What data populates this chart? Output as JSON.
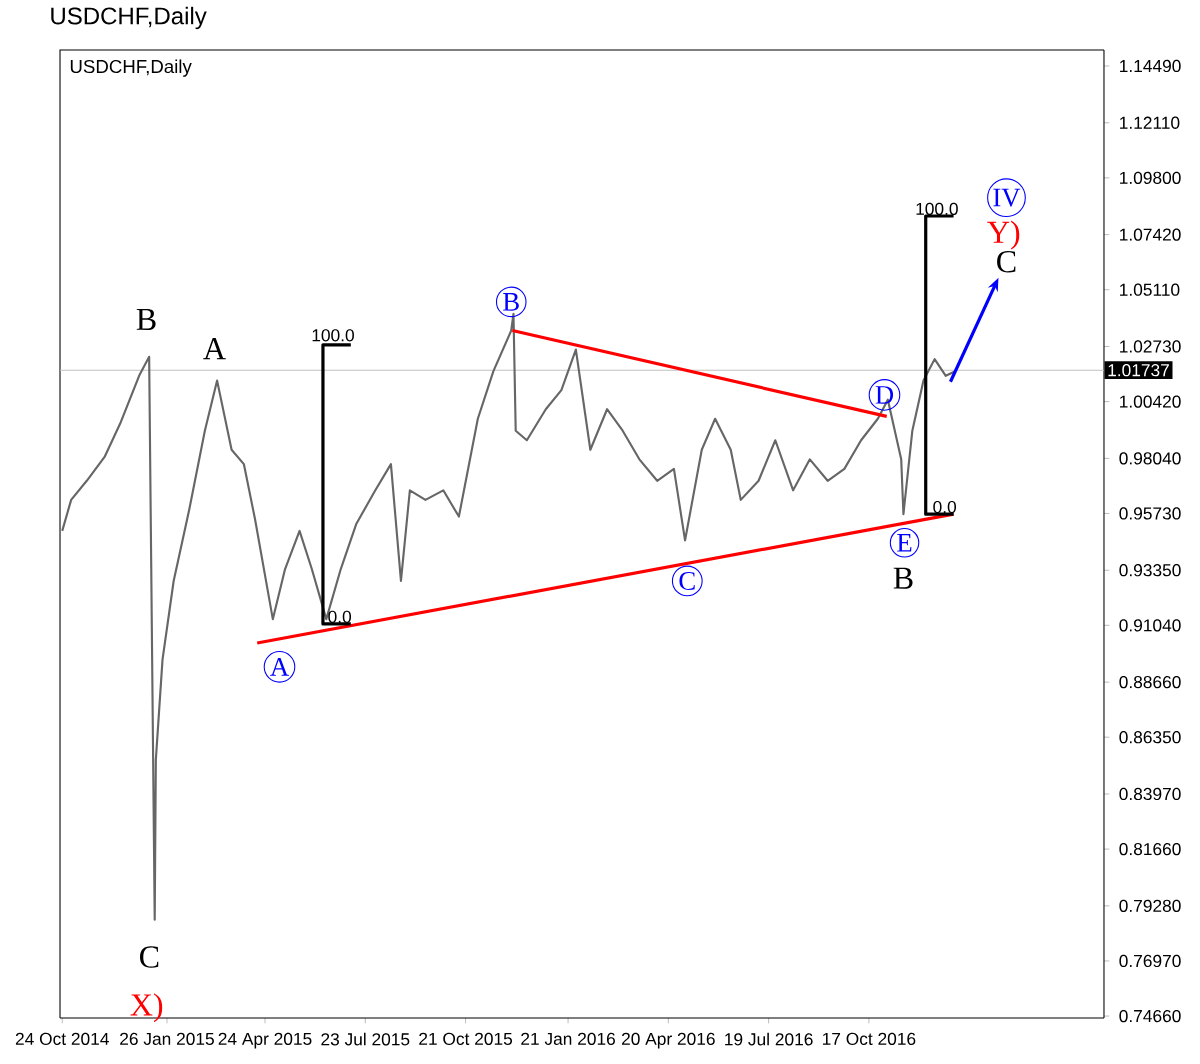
{
  "chart_data": {
    "type": "line",
    "title": "USDCHF,Daily",
    "subtitle": "USDCHF,Daily",
    "xlim": [
      "2014-10-22",
      "2017-05-16"
    ],
    "ylim": [
      0.7458,
      1.1516
    ],
    "xticks": [
      {
        "value": "2014-10-24",
        "label": "24 Oct 2014"
      },
      {
        "value": "2015-01-26",
        "label": "26 Jan 2015"
      },
      {
        "value": "2015-04-24",
        "label": "24 Apr 2015"
      },
      {
        "value": "2015-07-23",
        "label": "23 Jul 2015"
      },
      {
        "value": "2015-10-21",
        "label": "21 Oct 2015"
      },
      {
        "value": "2016-01-21",
        "label": "21 Jan 2016"
      },
      {
        "value": "2016-04-20",
        "label": "20 Apr 2016"
      },
      {
        "value": "2016-07-19",
        "label": "19 Jul 2016"
      },
      {
        "value": "2016-10-17",
        "label": "17 Oct 2016"
      }
    ],
    "yticks": [
      {
        "value": 1.1449,
        "label": "1.14490"
      },
      {
        "value": 1.1211,
        "label": "1.12110"
      },
      {
        "value": 1.098,
        "label": "1.09800"
      },
      {
        "value": 1.0742,
        "label": "1.07420"
      },
      {
        "value": 1.0511,
        "label": "1.05110"
      },
      {
        "value": 1.0273,
        "label": "1.02730"
      },
      {
        "value": 1.0042,
        "label": "1.00420"
      },
      {
        "value": 0.9804,
        "label": "0.98040"
      },
      {
        "value": 0.9573,
        "label": "0.95730"
      },
      {
        "value": 0.9335,
        "label": "0.93350"
      },
      {
        "value": 0.9104,
        "label": "0.91040"
      },
      {
        "value": 0.8866,
        "label": "0.88660"
      },
      {
        "value": 0.8635,
        "label": "0.86350"
      },
      {
        "value": 0.8397,
        "label": "0.83970"
      },
      {
        "value": 0.8166,
        "label": "0.81660"
      },
      {
        "value": 0.7928,
        "label": "0.79280"
      },
      {
        "value": 0.7697,
        "label": "0.76970"
      },
      {
        "value": 0.7466,
        "label": "0.74660"
      }
    ],
    "grid": false,
    "ref_lines": [
      {
        "axis": "y",
        "value": 1.01737,
        "label": "1.01737",
        "color": "#c0c0c0"
      }
    ],
    "series": [
      {
        "color": "#666666",
        "x": [
          "2014-10-24",
          "2014-11-01",
          "2014-11-15",
          "2014-12-01",
          "2014-12-15",
          "2015-01-01",
          "2015-01-10",
          "2015-01-15",
          "2015-01-16",
          "2015-01-22",
          "2015-02-01",
          "2015-02-15",
          "2015-03-01",
          "2015-03-12",
          "2015-03-25",
          "2015-04-05",
          "2015-04-15",
          "2015-05-01",
          "2015-05-12",
          "2015-05-25",
          "2015-06-05",
          "2015-06-18",
          "2015-07-01",
          "2015-07-15",
          "2015-08-01",
          "2015-08-15",
          "2015-08-24",
          "2015-09-01",
          "2015-09-15",
          "2015-10-01",
          "2015-10-15",
          "2015-11-01",
          "2015-11-15",
          "2015-12-01",
          "2015-12-03",
          "2015-12-05",
          "2015-12-15",
          "2016-01-01",
          "2016-01-15",
          "2016-01-28",
          "2016-02-10",
          "2016-02-25",
          "2016-03-10",
          "2016-03-25",
          "2016-04-10",
          "2016-04-25",
          "2016-05-05",
          "2016-05-20",
          "2016-06-01",
          "2016-06-15",
          "2016-06-24",
          "2016-07-10",
          "2016-07-25",
          "2016-08-10",
          "2016-08-25",
          "2016-09-10",
          "2016-09-25",
          "2016-10-10",
          "2016-10-25",
          "2016-11-03",
          "2016-11-15",
          "2016-11-17",
          "2016-11-25",
          "2016-12-05",
          "2016-12-15",
          "2016-12-25",
          "2017-01-03"
        ],
        "values": [
          0.95,
          0.963,
          0.971,
          0.981,
          0.995,
          1.015,
          1.023,
          0.787,
          0.854,
          0.896,
          0.929,
          0.959,
          0.992,
          1.013,
          0.984,
          0.978,
          0.955,
          0.913,
          0.934,
          0.95,
          0.934,
          0.913,
          0.934,
          0.953,
          0.967,
          0.978,
          0.929,
          0.967,
          0.963,
          0.967,
          0.956,
          0.997,
          1.017,
          1.034,
          1.041,
          0.992,
          0.988,
          1.001,
          1.009,
          1.026,
          0.984,
          1.001,
          0.992,
          0.98,
          0.971,
          0.976,
          0.946,
          0.984,
          0.997,
          0.984,
          0.963,
          0.971,
          0.988,
          0.967,
          0.98,
          0.971,
          0.976,
          0.988,
          0.997,
          1.005,
          0.98,
          0.957,
          0.992,
          1.013,
          1.022,
          1.015,
          1.017
        ]
      },
      {
        "color": "#ff0000",
        "x": [
          "2015-04-17",
          "2017-01-01"
        ],
        "values": [
          0.903,
          0.957
        ]
      },
      {
        "color": "#ff0000",
        "x": [
          "2015-12-02",
          "2016-11-02"
        ],
        "values": [
          1.034,
          0.998
        ]
      },
      {
        "color": "#000000",
        "x": [
          "2015-07-10",
          "2015-06-15",
          "2015-06-15",
          "2015-07-10"
        ],
        "values": [
          1.028,
          1.028,
          0.911,
          0.911
        ]
      },
      {
        "color": "#000000",
        "x": [
          "2017-01-01",
          "2016-12-07",
          "2016-12-07",
          "2017-01-01"
        ],
        "values": [
          1.082,
          1.082,
          0.957,
          0.957
        ]
      }
    ],
    "annotations": [
      {
        "text": "B",
        "x": "2015-01-10",
        "y": 1.023
      },
      {
        "text": "C",
        "x": "2015-01-15",
        "y": 0.787
      },
      {
        "text": "X)",
        "x": "2015-01-15",
        "y": 0.787
      },
      {
        "text": "A",
        "x": "2015-03-12",
        "y": 1.013
      },
      {
        "text": "A",
        "x": "2015-05-07",
        "y": 0.893
      },
      {
        "text": "B",
        "x": "2015-12-01",
        "y": 1.046
      },
      {
        "text": "C",
        "x": "2016-05-07",
        "y": 0.929
      },
      {
        "text": "D",
        "x": "2016-10-31",
        "y": 1.007
      },
      {
        "text": "E",
        "x": "2016-11-18",
        "y": 0.945
      },
      {
        "text": "B",
        "x": "2016-11-17",
        "y": 0.957
      },
      {
        "text": "C",
        "x": "2017-01-03",
        "y": 1.017
      },
      "Y)",
      "IV",
      {
        "text": "100.0",
        "x": "2015-06-24",
        "y": 1.032
      },
      {
        "text": "0.0",
        "x": "2015-06-30",
        "y": 0.914
      },
      {
        "text": "100.0",
        "x": "2016-12-17",
        "y": 1.085
      },
      {
        "text": "0.0",
        "x": "2016-12-24",
        "y": 0.96
      }
    ]
  }
}
